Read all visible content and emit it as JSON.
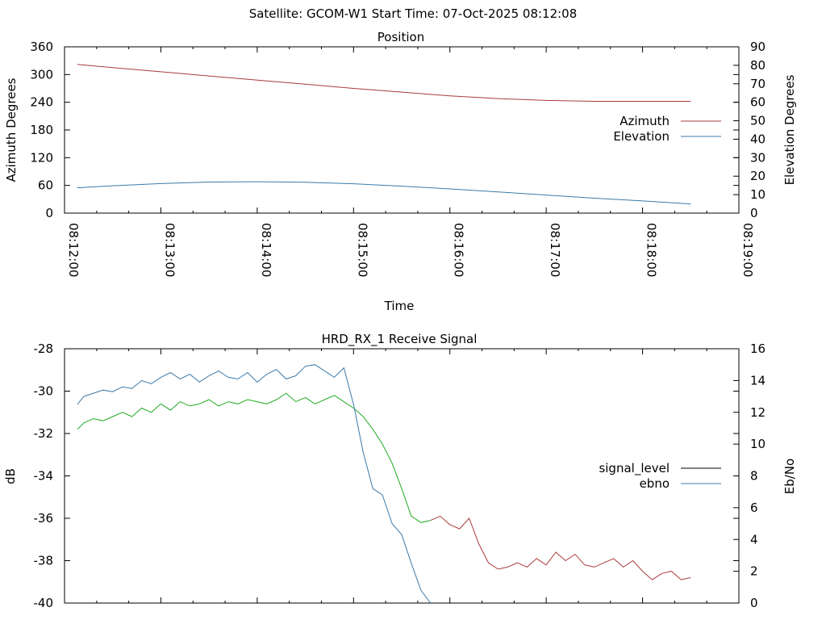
{
  "header": {
    "title": "Satellite: GCOM-W1    Start Time: 07-Oct-2025 08:12:08"
  },
  "colors": {
    "azimuth": "#aa3b3b",
    "elevation": "#3b7aaa",
    "signal_level": "#aa3b3b",
    "signal_level_legend": "#000000",
    "ebno": "#3b7aaa",
    "green": "#22aa22"
  },
  "chart_data": [
    {
      "type": "line",
      "title": "Position",
      "xlabel": "Time",
      "ylabel": "Azimuth Degrees",
      "y2label": "Elevation Degrees",
      "xlim_min": [
        0,
        7
      ],
      "x_tick_labels": [
        "08:12:00",
        "08:13:00",
        "08:14:00",
        "08:15:00",
        "08:16:00",
        "08:17:00",
        "08:18:00",
        "08:19:00"
      ],
      "ylim": [
        0,
        360
      ],
      "y_ticks": [
        "0",
        "60",
        "120",
        "180",
        "240",
        "300",
        "360"
      ],
      "y2lim": [
        0,
        90
      ],
      "y2_ticks": [
        "0",
        "10",
        "20",
        "30",
        "40",
        "50",
        "60",
        "70",
        "80",
        "90"
      ],
      "legend": [
        "Azimuth",
        "Elevation"
      ],
      "legend_position": "right",
      "series": [
        {
          "name": "Azimuth",
          "axis": "y",
          "x_min": [
            0.133,
            0.5,
            1.0,
            1.5,
            2.0,
            2.5,
            3.0,
            3.5,
            4.0,
            4.5,
            5.0,
            5.5,
            6.0,
            6.5
          ],
          "values": [
            322,
            315,
            306,
            297,
            288,
            279,
            270,
            262,
            254,
            248,
            244,
            242,
            242,
            242
          ]
        },
        {
          "name": "Elevation",
          "axis": "y2",
          "x_min": [
            0.133,
            0.5,
            1.0,
            1.5,
            2.0,
            2.5,
            3.0,
            3.5,
            4.0,
            4.5,
            5.0,
            5.5,
            6.0,
            6.5
          ],
          "values": [
            13.7,
            14.8,
            16.0,
            16.8,
            17.0,
            16.7,
            15.9,
            14.6,
            13.1,
            11.5,
            9.8,
            8.1,
            6.6,
            5.0
          ]
        }
      ]
    },
    {
      "type": "line",
      "title": "HRD_RX_1 Receive Signal",
      "xlabel": "",
      "ylabel": "dB",
      "y2label": "Eb/No",
      "xlim_min": [
        0,
        7
      ],
      "ylim": [
        -40,
        -28
      ],
      "y_ticks": [
        "-28",
        "-30",
        "-32",
        "-34",
        "-36",
        "-38",
        "-40"
      ],
      "y2lim": [
        0,
        16
      ],
      "y2_ticks": [
        "0",
        "2",
        "4",
        "6",
        "8",
        "10",
        "12",
        "14",
        "16"
      ],
      "legend": [
        "signal_level",
        "ebno"
      ],
      "legend_position": "right",
      "series": [
        {
          "name": "signal_level",
          "axis": "y",
          "x_min": [
            0.133,
            0.2,
            0.3,
            0.4,
            0.5,
            0.6,
            0.7,
            0.8,
            0.9,
            1.0,
            1.1,
            1.2,
            1.3,
            1.4,
            1.5,
            1.6,
            1.7,
            1.8,
            1.9,
            2.0,
            2.1,
            2.2,
            2.3,
            2.4,
            2.5,
            2.6,
            2.7,
            2.8,
            2.9,
            3.0,
            3.1,
            3.2,
            3.3,
            3.4,
            3.5,
            3.6,
            3.7,
            3.8,
            3.9,
            4.0,
            4.1,
            4.2,
            4.3,
            4.4,
            4.5,
            4.6,
            4.7,
            4.8,
            4.9,
            5.0,
            5.1,
            5.2,
            5.3,
            5.4,
            5.5,
            5.6,
            5.7,
            5.8,
            5.9,
            6.0,
            6.1,
            6.2,
            6.3,
            6.4,
            6.5
          ],
          "values": [
            -31.8,
            -31.5,
            -31.3,
            -31.4,
            -31.2,
            -31.0,
            -31.2,
            -30.8,
            -31.0,
            -30.6,
            -30.9,
            -30.5,
            -30.7,
            -30.6,
            -30.4,
            -30.7,
            -30.5,
            -30.6,
            -30.4,
            -30.5,
            -30.6,
            -30.4,
            -30.1,
            -30.5,
            -30.3,
            -30.6,
            -30.4,
            -30.2,
            -30.5,
            -30.8,
            -31.2,
            -31.8,
            -32.5,
            -33.4,
            -34.6,
            -35.9,
            -36.2,
            -36.1,
            -35.9,
            -36.3,
            -36.5,
            -36.0,
            -37.2,
            -38.1,
            -38.4,
            -38.3,
            -38.1,
            -38.3,
            -37.9,
            -38.2,
            -37.6,
            -38.0,
            -37.7,
            -38.2,
            -38.3,
            -38.1,
            -37.9,
            -38.3,
            -38.0,
            -38.5,
            -38.9,
            -38.6,
            -38.5,
            -38.9,
            -38.8
          ]
        },
        {
          "name": "ebno",
          "axis": "y2",
          "x_min": [
            0.133,
            0.2,
            0.3,
            0.4,
            0.5,
            0.6,
            0.7,
            0.8,
            0.9,
            1.0,
            1.1,
            1.2,
            1.3,
            1.4,
            1.5,
            1.6,
            1.7,
            1.8,
            1.9,
            2.0,
            2.1,
            2.2,
            2.3,
            2.4,
            2.5,
            2.6,
            2.7,
            2.8,
            2.9,
            3.0,
            3.1,
            3.2,
            3.3,
            3.4,
            3.5,
            3.6,
            3.7,
            3.8
          ],
          "values": [
            12.5,
            13.0,
            13.2,
            13.4,
            13.3,
            13.6,
            13.5,
            14.0,
            13.8,
            14.2,
            14.5,
            14.1,
            14.4,
            13.9,
            14.3,
            14.6,
            14.2,
            14.1,
            14.5,
            13.9,
            14.4,
            14.7,
            14.1,
            14.3,
            14.9,
            15.0,
            14.6,
            14.2,
            14.8,
            12.5,
            9.5,
            7.2,
            6.8,
            5.0,
            4.3,
            2.5,
            0.8,
            0.0
          ]
        }
      ]
    }
  ]
}
